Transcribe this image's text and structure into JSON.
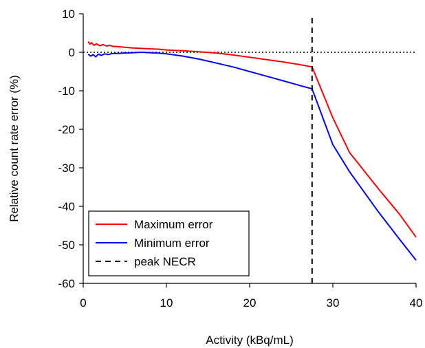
{
  "chart_data": {
    "type": "line",
    "title": "",
    "xlabel": "Activity (kBq/mL)",
    "ylabel": "Relative count rate error (%)",
    "xlim": [
      0,
      40
    ],
    "ylim": [
      -60,
      10
    ],
    "xticks": [
      0,
      10,
      20,
      30,
      40
    ],
    "yticks": [
      10,
      0,
      -10,
      -20,
      -30,
      -40,
      -50,
      -60
    ],
    "grid": false,
    "legend_position": "bottom-left",
    "series": [
      {
        "name": "Maximum error",
        "color": "#ff0000",
        "style": "solid",
        "x": [
          0.6,
          0.8,
          1.0,
          1.3,
          1.6,
          2.0,
          2.4,
          2.8,
          3.2,
          3.6,
          4.0,
          5.0,
          6.0,
          7.0,
          8.0,
          9.0,
          10.0,
          12.0,
          14.0,
          16.0,
          18.0,
          20.0,
          22.0,
          24.0,
          26.0,
          27.5,
          30.0,
          32.0,
          35.5,
          38.0,
          40.0
        ],
        "y": [
          2.8,
          2.1,
          2.5,
          1.8,
          2.2,
          1.7,
          2.0,
          1.6,
          1.8,
          1.5,
          1.5,
          1.3,
          1.1,
          1.0,
          0.9,
          0.8,
          0.6,
          0.4,
          0.1,
          -0.2,
          -0.7,
          -1.3,
          -1.9,
          -2.5,
          -3.2,
          -3.8,
          -17.0,
          -26.0,
          -35.5,
          -42.0,
          -48.0
        ]
      },
      {
        "name": "Minimum error",
        "color": "#0000ff",
        "style": "solid",
        "x": [
          0.6,
          0.9,
          1.2,
          1.5,
          1.8,
          2.2,
          2.6,
          3.0,
          3.5,
          4.0,
          5.0,
          6.0,
          7.0,
          8.0,
          9.0,
          10.0,
          12.0,
          14.0,
          16.0,
          18.0,
          20.0,
          22.0,
          24.0,
          26.0,
          27.5,
          30.0,
          32.0,
          35.5,
          38.0,
          40.0
        ],
        "y": [
          -0.5,
          -1.0,
          -0.6,
          -1.2,
          -0.5,
          -0.8,
          -0.4,
          -0.6,
          -0.3,
          -0.3,
          -0.2,
          -0.1,
          0.0,
          -0.1,
          -0.2,
          -0.4,
          -1.0,
          -1.8,
          -2.8,
          -3.8,
          -5.0,
          -6.2,
          -7.4,
          -8.6,
          -9.5,
          -24.0,
          -31.0,
          -41.5,
          -48.5,
          -54.0
        ]
      },
      {
        "name": "peak NECR",
        "color": "#000000",
        "style": "dashed",
        "x": [
          27.5,
          27.5
        ],
        "y": [
          -60,
          10
        ]
      }
    ],
    "reference_line": {
      "y": 0,
      "style": "dotted",
      "color": "#000000"
    }
  }
}
